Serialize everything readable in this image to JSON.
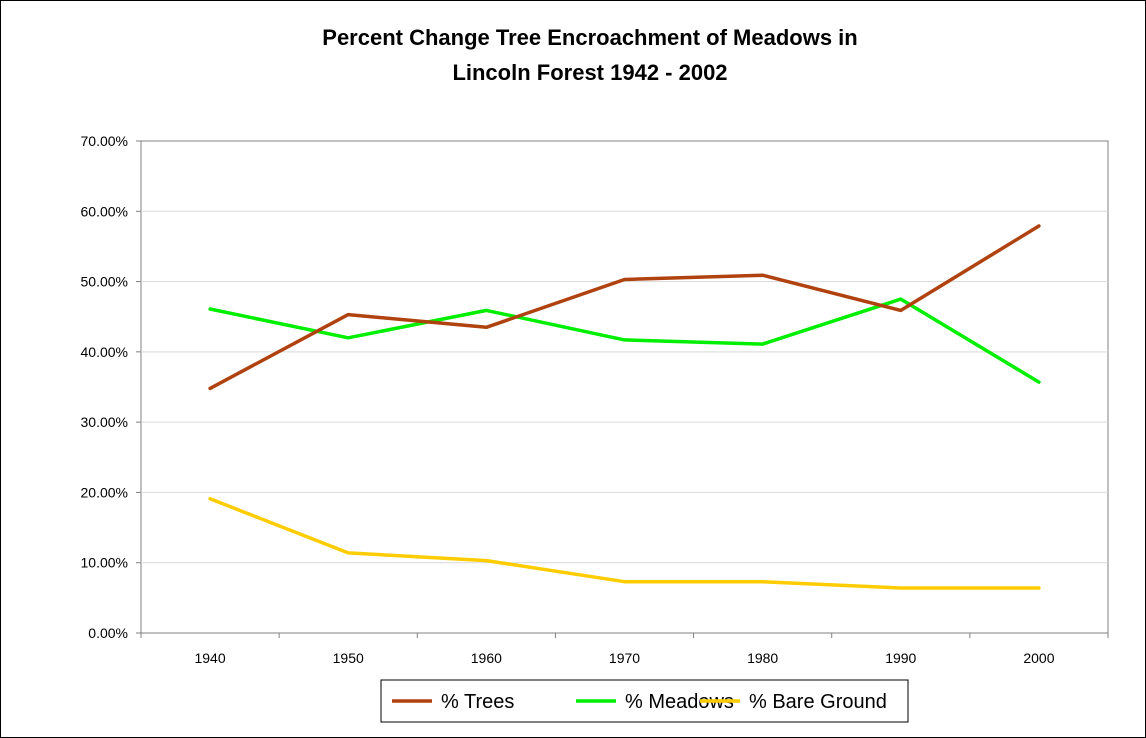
{
  "chart_data": {
    "type": "line",
    "title": "Percent Change Tree Encroachment of Meadows in",
    "subtitle": "Lincoln Forest 1942 - 2002",
    "xlabel": "",
    "ylabel": "",
    "categories": [
      "1940",
      "1950",
      "1960",
      "1970",
      "1980",
      "1990",
      "2000"
    ],
    "ylim": [
      0,
      70
    ],
    "y_ticks": [
      "0.00%",
      "10.00%",
      "20.00%",
      "30.00%",
      "40.00%",
      "50.00%",
      "60.00%",
      "70.00%"
    ],
    "grid": true,
    "legend_position": "bottom",
    "series": [
      {
        "name": "% Trees",
        "color": "#B0420F",
        "values": [
          34.8,
          45.3,
          43.5,
          50.3,
          50.9,
          45.9,
          57.9
        ]
      },
      {
        "name": "% Meadows",
        "color": "#00EE00",
        "values": [
          46.1,
          42.0,
          45.9,
          41.7,
          41.1,
          47.5,
          35.7
        ]
      },
      {
        "name": "% Bare Ground",
        "color": "#FFCC00",
        "values": [
          19.1,
          11.4,
          10.3,
          7.3,
          7.3,
          6.4,
          6.4
        ]
      }
    ]
  }
}
